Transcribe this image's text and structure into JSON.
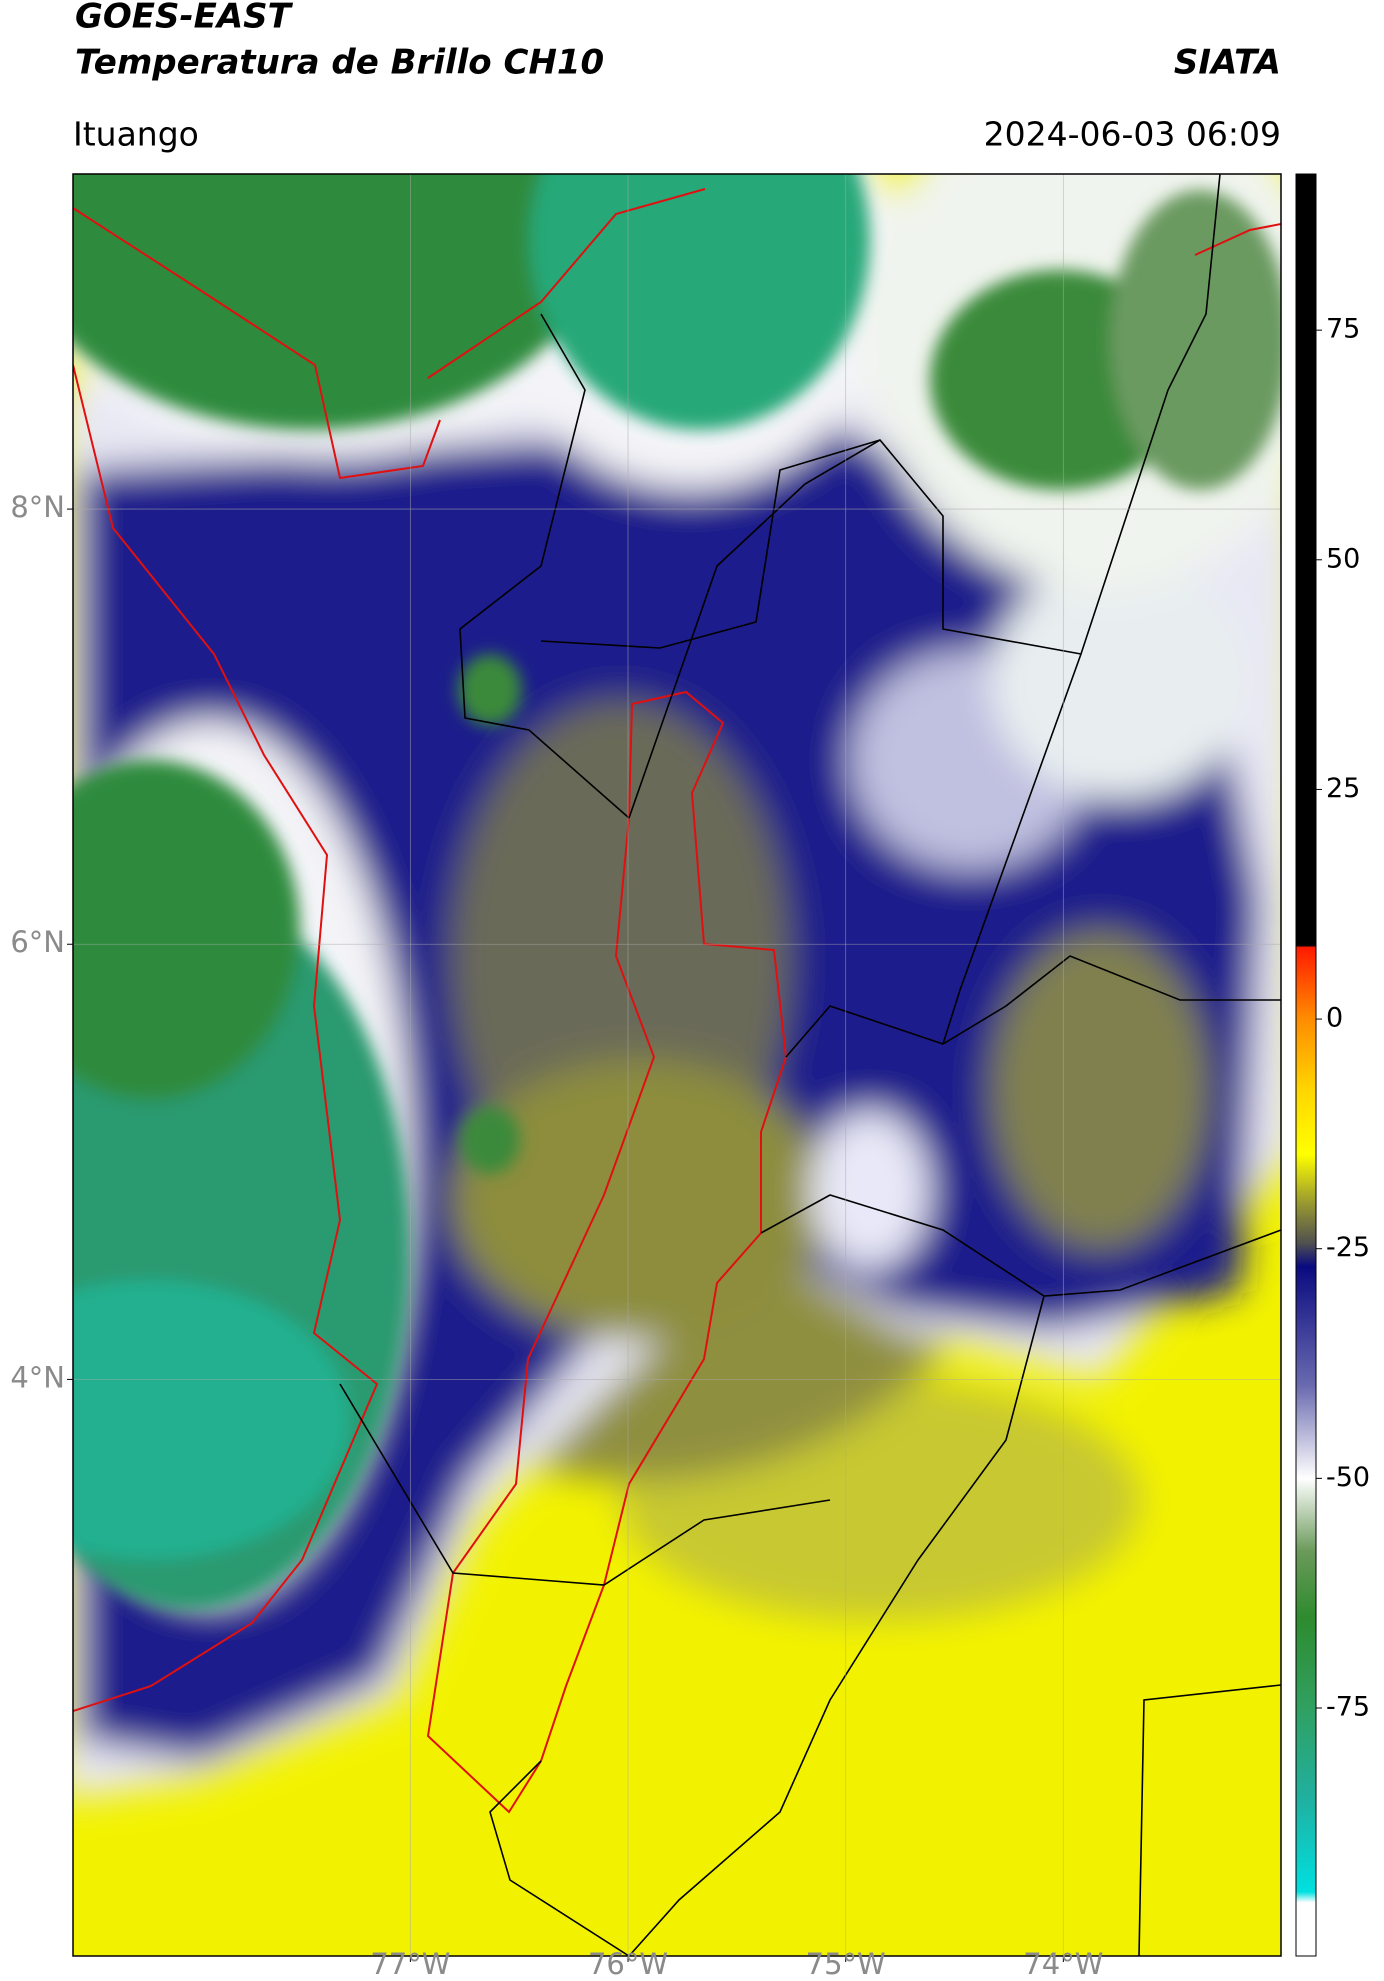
{
  "chart_data": {
    "type": "map",
    "title": "GOES-EAST",
    "subtitle": "Temperatura de Brillo CH10",
    "source": "SIATA",
    "location": "Ituango",
    "datetime": "2024-06-03 06:09",
    "xlim": [
      -78.55,
      -73.0
    ],
    "ylim": [
      1.35,
      9.54
    ],
    "xticks": [
      {
        "value": -77,
        "label": "77°W"
      },
      {
        "value": -76,
        "label": "76°W"
      },
      {
        "value": -75,
        "label": "75°W"
      },
      {
        "value": -74,
        "label": "74°W"
      }
    ],
    "yticks": [
      {
        "value": 8,
        "label": "8°N"
      },
      {
        "value": 6,
        "label": "6°N"
      },
      {
        "value": 4,
        "label": "4°N"
      }
    ],
    "grid": true,
    "colorbar_lim": [
      -102,
      92
    ],
    "colorbar_ticks": [
      75,
      50,
      25,
      0,
      -25,
      -50,
      -75
    ]
  }
}
